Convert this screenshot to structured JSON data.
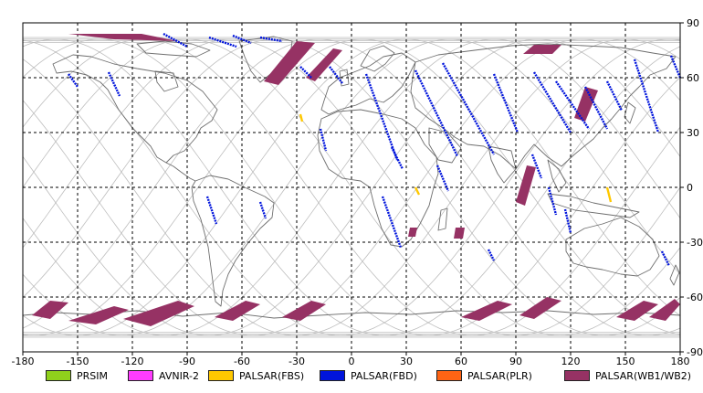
{
  "map": {
    "projection": "equirectangular",
    "lon_range": [
      -180,
      180
    ],
    "lat_range": [
      -90,
      90
    ],
    "x_ticks": [
      "-180",
      "-150",
      "-120",
      "-90",
      "-60",
      "-30",
      "0",
      "30",
      "60",
      "90",
      "120",
      "150",
      "180"
    ],
    "y_ticks": [
      "90",
      "60",
      "30",
      "0",
      "-30",
      "-60",
      "-90"
    ],
    "grid": "dashed",
    "colors": {
      "land": "#6e6e6e",
      "orbit": "#bdbdbd",
      "grid": "#000000"
    }
  },
  "legend": [
    {
      "label": "PRSIM",
      "color": "#8fd01c"
    },
    {
      "label": "AVNIR-2",
      "color": "#ff3cff"
    },
    {
      "label": "PALSAR(FBS)",
      "color": "#ffc800"
    },
    {
      "label": "PALSAR(FBD)",
      "color": "#0014dc"
    },
    {
      "label": "PALSAR(PLR)",
      "color": "#ff6414"
    },
    {
      "label": "PALSAR(WB1/WB2)",
      "color": "#963264"
    }
  ],
  "observations": {
    "wb": [
      [
        [
          -155,
          84
        ],
        [
          -130,
          81
        ],
        [
          -95,
          80
        ],
        [
          -115,
          84
        ]
      ],
      [
        [
          -30,
          80
        ],
        [
          -20,
          79
        ],
        [
          -40,
          56
        ],
        [
          -48,
          58
        ]
      ],
      [
        [
          -10,
          76
        ],
        [
          -5,
          75
        ],
        [
          -20,
          58
        ],
        [
          -25,
          60
        ]
      ],
      [
        [
          100,
          78
        ],
        [
          115,
          78
        ],
        [
          110,
          73
        ],
        [
          94,
          73
        ]
      ],
      [
        [
          128,
          55
        ],
        [
          135,
          53
        ],
        [
          128,
          36
        ],
        [
          122,
          38
        ]
      ],
      [
        [
          96,
          12
        ],
        [
          101,
          11
        ],
        [
          95,
          -10
        ],
        [
          90,
          -8
        ]
      ],
      [
        [
          32,
          -22
        ],
        [
          36,
          -22
        ],
        [
          35,
          -27
        ],
        [
          31,
          -27
        ]
      ],
      [
        [
          57,
          -22
        ],
        [
          62,
          -22
        ],
        [
          61,
          -28
        ],
        [
          56,
          -28
        ]
      ],
      [
        [
          -165,
          -62
        ],
        [
          -155,
          -63
        ],
        [
          -165,
          -72
        ],
        [
          -175,
          -70
        ]
      ],
      [
        [
          -130,
          -65
        ],
        [
          -122,
          -67
        ],
        [
          -140,
          -75
        ],
        [
          -155,
          -73
        ]
      ],
      [
        [
          -95,
          -62
        ],
        [
          -86,
          -65
        ],
        [
          -110,
          -76
        ],
        [
          -125,
          -72
        ]
      ],
      [
        [
          -58,
          -62
        ],
        [
          -50,
          -64
        ],
        [
          -65,
          -73
        ],
        [
          -75,
          -71
        ]
      ],
      [
        [
          -22,
          -62
        ],
        [
          -14,
          -64
        ],
        [
          -28,
          -73
        ],
        [
          -38,
          -71
        ]
      ],
      [
        [
          80,
          -62
        ],
        [
          88,
          -64
        ],
        [
          70,
          -73
        ],
        [
          60,
          -71
        ]
      ],
      [
        [
          107,
          -60
        ],
        [
          115,
          -62
        ],
        [
          100,
          -72
        ],
        [
          92,
          -70
        ]
      ],
      [
        [
          160,
          -62
        ],
        [
          168,
          -64
        ],
        [
          155,
          -73
        ],
        [
          145,
          -71
        ]
      ],
      [
        [
          177,
          -61
        ],
        [
          180,
          -64
        ],
        [
          172,
          -73
        ],
        [
          163,
          -71
        ]
      ]
    ],
    "fbd": [
      [
        [
          -103,
          84
        ],
        [
          -90,
          77
        ]
      ],
      [
        [
          -78,
          82
        ],
        [
          -63,
          77
        ]
      ],
      [
        [
          -65,
          83
        ],
        [
          -55,
          79
        ]
      ],
      [
        [
          -50,
          82
        ],
        [
          -38,
          80
        ]
      ],
      [
        [
          -155,
          62
        ],
        [
          -150,
          55
        ]
      ],
      [
        [
          -133,
          63
        ],
        [
          -127,
          50
        ]
      ],
      [
        [
          -28,
          66
        ],
        [
          -22,
          60
        ]
      ],
      [
        [
          -12,
          66
        ],
        [
          -5,
          57
        ]
      ],
      [
        [
          -17,
          32
        ],
        [
          -14,
          20
        ]
      ],
      [
        [
          8,
          62
        ],
        [
          25,
          15
        ]
      ],
      [
        [
          35,
          64
        ],
        [
          58,
          17
        ]
      ],
      [
        [
          50,
          68
        ],
        [
          78,
          18
        ]
      ],
      [
        [
          78,
          62
        ],
        [
          91,
          30
        ]
      ],
      [
        [
          100,
          63
        ],
        [
          120,
          30
        ]
      ],
      [
        [
          112,
          58
        ],
        [
          130,
          32
        ]
      ],
      [
        [
          128,
          55
        ],
        [
          140,
          32
        ]
      ],
      [
        [
          140,
          58
        ],
        [
          148,
          42
        ]
      ],
      [
        [
          155,
          70
        ],
        [
          168,
          30
        ]
      ],
      [
        [
          175,
          72
        ],
        [
          180,
          60
        ]
      ],
      [
        [
          22,
          22
        ],
        [
          28,
          10
        ]
      ],
      [
        [
          17,
          -5
        ],
        [
          27,
          -33
        ]
      ],
      [
        [
          47,
          12
        ],
        [
          53,
          -2
        ]
      ],
      [
        [
          99,
          18
        ],
        [
          104,
          5
        ]
      ],
      [
        [
          108,
          0
        ],
        [
          112,
          -15
        ]
      ],
      [
        [
          117,
          -12
        ],
        [
          120,
          -25
        ]
      ],
      [
        [
          -79,
          -5
        ],
        [
          -74,
          -20
        ]
      ],
      [
        [
          -50,
          -8
        ],
        [
          -47,
          -17
        ]
      ],
      [
        [
          170,
          -35
        ],
        [
          174,
          -43
        ]
      ],
      [
        [
          75,
          -34
        ],
        [
          78,
          -40
        ]
      ]
    ],
    "fbs": [
      [
        [
          -28,
          40
        ],
        [
          -27,
          36
        ]
      ],
      [
        [
          35,
          0
        ],
        [
          37,
          -4
        ]
      ],
      [
        [
          140,
          0
        ],
        [
          142,
          -8
        ]
      ]
    ]
  }
}
